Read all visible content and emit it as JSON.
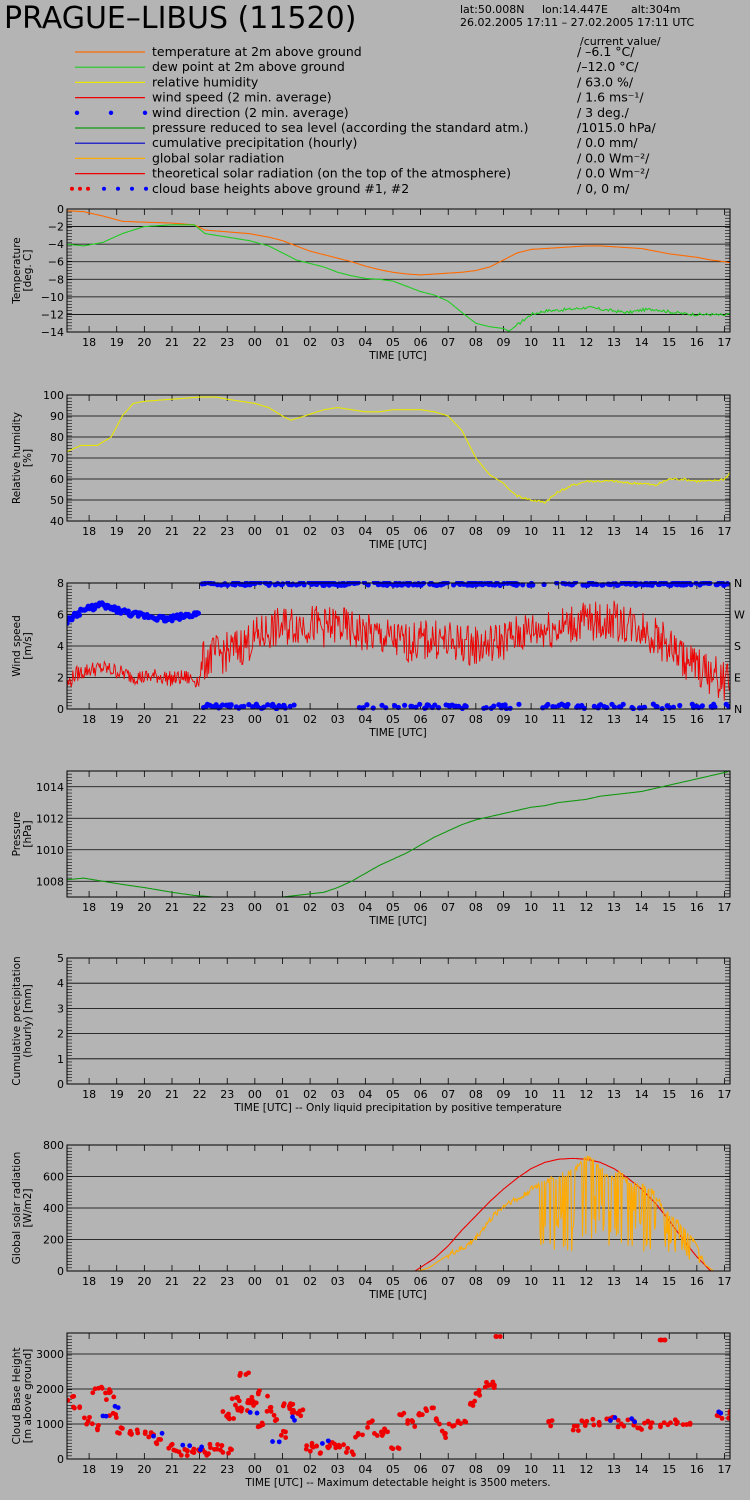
{
  "header": {
    "station": "PRAGUE–LIBUS (11520)",
    "lat": "lat:50.008N",
    "lon": "lon:14.447E",
    "alt": "alt:304m",
    "period": "26.02.2005 17:11 – 27.02.2005 17:11 UTC",
    "current_label": "/current value/"
  },
  "legend": [
    {
      "key": "temperature",
      "label": "temperature at 2m above ground",
      "value": "/ –6.1 °C/",
      "color": "#ff6a00",
      "style": "line"
    },
    {
      "key": "dewpoint",
      "label": "dew point at 2m above ground",
      "value": "/–12.0 °C/",
      "color": "#22cc22",
      "style": "line"
    },
    {
      "key": "humidity",
      "label": "relative humidity",
      "value": "/ 63.0 %/",
      "color": "#e6e600",
      "style": "line"
    },
    {
      "key": "windspeed",
      "label": "wind speed (2 min. average)",
      "value": "/ 1.6 ms⁻¹/",
      "color": "#ee0000",
      "style": "line"
    },
    {
      "key": "winddir",
      "label": "wind direction (2 min. average)",
      "value": "/ 3 deg./",
      "color": "#0000ff",
      "style": "dots"
    },
    {
      "key": "pressure",
      "label": "pressure reduced to sea level (according the standard atm.)",
      "value": "/1015.0 hPa/",
      "color": "#119911",
      "style": "line"
    },
    {
      "key": "precip",
      "label": "cumulative precipitation (hourly)",
      "value": "/ 0.0 mm/",
      "color": "#0000cc",
      "style": "line"
    },
    {
      "key": "solar",
      "label": "global solar radiation",
      "value": "/ 0.0 Wm⁻²/",
      "color": "#ffaa00",
      "style": "line"
    },
    {
      "key": "theory",
      "label": "theoretical solar radiation (on the top of the atmosphere)",
      "value": "/ 0.0 Wm⁻²/",
      "color": "#ee0000",
      "style": "line"
    },
    {
      "key": "cloud",
      "label": "cloud base heights above ground #1, #2",
      "value": "/ 0, 0 m/",
      "color": "#ee0000",
      "style": "dots2"
    }
  ],
  "time_ticks": [
    "18",
    "19",
    "20",
    "21",
    "22",
    "23",
    "00",
    "01",
    "02",
    "03",
    "04",
    "05",
    "06",
    "07",
    "08",
    "09",
    "10",
    "11",
    "12",
    "13",
    "14",
    "15",
    "16",
    "17"
  ],
  "chart_data": [
    {
      "type": "line",
      "ylabel": "Temperature\n[deg. C]",
      "xlabel": "TIME [UTC]",
      "ylim": [
        -14,
        0
      ],
      "yticks": [
        0,
        -2,
        -4,
        -6,
        -8,
        -10,
        -12,
        -14
      ],
      "series": [
        {
          "name": "temperature",
          "color": "#ff6a00",
          "x": [
            17.2,
            17.8,
            18.5,
            19.2,
            20,
            21,
            21.8,
            22.2,
            23,
            23.8,
            24.5,
            25,
            25.5,
            26,
            26.5,
            27,
            27.5,
            28,
            28.5,
            29,
            29.5,
            30,
            30.5,
            31,
            31.5,
            32,
            32.5,
            33,
            33.5,
            34,
            34.5,
            35,
            35.5,
            36,
            36.5,
            37,
            37.5,
            38,
            38.5,
            39,
            39.5,
            40,
            40.5,
            41,
            41.2
          ],
          "y": [
            -0.2,
            -0.3,
            -0.8,
            -1.4,
            -1.5,
            -1.6,
            -1.8,
            -2.4,
            -2.6,
            -2.8,
            -3.2,
            -3.6,
            -4.2,
            -4.8,
            -5.2,
            -5.6,
            -6.0,
            -6.5,
            -6.9,
            -7.2,
            -7.4,
            -7.5,
            -7.4,
            -7.3,
            -7.2,
            -7.0,
            -6.6,
            -5.8,
            -5.0,
            -4.6,
            -4.5,
            -4.4,
            -4.3,
            -4.2,
            -4.2,
            -4.3,
            -4.4,
            -4.5,
            -4.8,
            -5.1,
            -5.3,
            -5.5,
            -5.8,
            -6.0,
            -6.1
          ]
        },
        {
          "name": "dew point",
          "color": "#22cc22",
          "x": [
            17.2,
            17.8,
            18.5,
            19.2,
            20,
            21,
            21.8,
            22.2,
            23,
            23.8,
            24.5,
            25,
            25.5,
            26,
            26.5,
            27,
            27.5,
            28,
            28.5,
            29,
            29.5,
            30,
            30.5,
            31,
            31.5,
            32,
            32.5,
            33,
            33.2,
            33.5,
            34,
            34.5,
            35,
            35.5,
            36,
            36.5,
            37,
            37.5,
            38,
            38.5,
            39,
            39.5,
            40,
            40.5,
            41,
            41.2
          ],
          "y": [
            -4.0,
            -4.2,
            -3.8,
            -2.8,
            -2.0,
            -1.8,
            -1.8,
            -2.8,
            -3.2,
            -3.6,
            -4.2,
            -5.0,
            -5.8,
            -6.2,
            -6.6,
            -7.2,
            -7.6,
            -7.9,
            -8.0,
            -8.2,
            -8.8,
            -9.4,
            -9.8,
            -10.5,
            -11.8,
            -13.0,
            -13.4,
            -13.6,
            -13.9,
            -13.2,
            -12.0,
            -11.6,
            -11.5,
            -11.4,
            -11.2,
            -11.4,
            -11.6,
            -11.8,
            -11.5,
            -11.4,
            -11.7,
            -11.9,
            -12.0,
            -12.0,
            -12.1,
            -12.0
          ]
        }
      ]
    },
    {
      "type": "line",
      "ylabel": "Relative humidity\n[%]",
      "xlabel": "TIME [UTC]",
      "ylim": [
        40,
        100
      ],
      "yticks": [
        100,
        90,
        80,
        70,
        60,
        50,
        40
      ],
      "series": [
        {
          "name": "relative humidity",
          "color": "#e6e600",
          "x": [
            17.2,
            17.7,
            18.3,
            18.8,
            19.2,
            19.6,
            20,
            21,
            22,
            22.6,
            23,
            24,
            24.5,
            25,
            25.3,
            25.8,
            26.5,
            27,
            27.5,
            28,
            28.5,
            29,
            29.5,
            30,
            30.5,
            31,
            31.5,
            32,
            32.5,
            33,
            33.2,
            33.5,
            34,
            34.5,
            35,
            35.5,
            36,
            36.5,
            37,
            37.5,
            38,
            38.5,
            39,
            39.5,
            40,
            40.5,
            41,
            41.2
          ],
          "y": [
            73,
            76,
            76,
            80,
            90,
            96,
            97,
            98,
            99,
            99,
            98,
            96,
            94,
            90,
            88,
            90,
            93,
            94,
            93,
            92,
            92,
            93,
            93,
            93,
            92,
            90,
            83,
            70,
            62,
            58,
            55,
            52,
            50,
            49,
            54,
            57,
            59,
            59,
            59,
            58,
            58,
            57,
            60,
            60,
            59,
            59,
            60,
            63
          ]
        }
      ]
    },
    {
      "type": "line",
      "ylabel": "Wind speed\n[m/s]",
      "xlabel": "TIME [UTC]",
      "ylim": [
        0,
        8
      ],
      "yticks": [
        8,
        6,
        4,
        2,
        0
      ],
      "right_labels": [
        "N",
        "W",
        "S",
        "E",
        "N"
      ],
      "series": [
        {
          "name": "wind speed",
          "color": "#ee0000",
          "noisy": true,
          "x": [
            17.2,
            17.5,
            18,
            18.5,
            19,
            19.5,
            20,
            20.5,
            21,
            21.5,
            22,
            22.1,
            22.5,
            23,
            23.5,
            24,
            24.5,
            25,
            25.5,
            26,
            26.5,
            27,
            27.5,
            28,
            28.5,
            29,
            29.5,
            30,
            30.5,
            31,
            31.5,
            32,
            32.5,
            33,
            33.5,
            34,
            34.5,
            35,
            35.5,
            36,
            36.5,
            37,
            37.5,
            38,
            38.5,
            39,
            39.5,
            40,
            40.5,
            41,
            41.2
          ],
          "y": [
            1.5,
            2.2,
            2.5,
            2.6,
            2.4,
            2.1,
            2.0,
            2.1,
            1.9,
            2.0,
            1.8,
            3.0,
            3.4,
            3.6,
            4.0,
            4.5,
            5.0,
            5.2,
            5.4,
            5.4,
            5.2,
            5.3,
            5.0,
            4.8,
            4.6,
            4.4,
            4.2,
            4.3,
            4.5,
            4.2,
            4.2,
            4.0,
            4.1,
            4.4,
            4.7,
            5.0,
            5.1,
            5.2,
            5.4,
            5.6,
            5.5,
            5.6,
            5.4,
            5.2,
            4.6,
            4.0,
            3.2,
            2.7,
            2.2,
            1.8,
            1.6
          ]
        }
      ],
      "scatter": [
        {
          "name": "wind direction",
          "color": "#0000ff",
          "segments": [
            {
              "x0": 17.2,
              "x1": 22.0,
              "y": [
                5.6,
                6.3,
                6.6,
                6.3,
                6.0,
                5.9,
                5.7,
                5.9,
                6.1
              ]
            },
            {
              "x0": 22.1,
              "x1": 41.2,
              "y": [
                7.95
              ],
              "alt_y": [
                0.1
              ]
            }
          ]
        }
      ]
    },
    {
      "type": "line",
      "ylabel": "Pressure\n[hPa]",
      "xlabel": "TIME [UTC]",
      "ylim": [
        1007,
        1015
      ],
      "yticks": [
        1014,
        1012,
        1010,
        1008
      ],
      "series": [
        {
          "name": "pressure",
          "color": "#119911",
          "x": [
            17.2,
            17.8,
            18.5,
            19.2,
            20,
            21,
            21.8,
            22.5,
            23.5,
            24.5,
            25,
            25.5,
            26,
            26.5,
            27,
            27.5,
            28,
            28.5,
            29,
            29.5,
            30,
            30.5,
            31,
            31.5,
            32,
            32.5,
            33,
            33.5,
            34,
            34.5,
            35,
            35.5,
            36,
            36.5,
            37,
            37.5,
            38,
            38.5,
            39,
            39.5,
            40,
            40.5,
            41,
            41.2
          ],
          "y": [
            1008.1,
            1008.2,
            1008.0,
            1007.8,
            1007.6,
            1007.3,
            1007.1,
            1007.0,
            1007.0,
            1007.0,
            1007.0,
            1007.1,
            1007.2,
            1007.3,
            1007.6,
            1008.0,
            1008.5,
            1009.0,
            1009.4,
            1009.8,
            1010.3,
            1010.8,
            1011.2,
            1011.6,
            1011.9,
            1012.1,
            1012.3,
            1012.5,
            1012.7,
            1012.8,
            1013.0,
            1013.1,
            1013.2,
            1013.4,
            1013.5,
            1013.6,
            1013.7,
            1013.9,
            1014.1,
            1014.3,
            1014.5,
            1014.7,
            1014.9,
            1015.0
          ]
        }
      ]
    },
    {
      "type": "line",
      "ylabel": "Cumulative precipitation\n(hourly) [mm]",
      "xlabel": "TIME [UTC] -- Only liquid precipitation by positive temperature",
      "ylim": [
        0,
        5
      ],
      "yticks": [
        5,
        4,
        3,
        2,
        1,
        0
      ],
      "series": [
        {
          "name": "cumulative precipitation",
          "color": "#0000cc",
          "x": [
            17.2,
            41.2
          ],
          "y": [
            0,
            0
          ]
        }
      ]
    },
    {
      "type": "line",
      "ylabel": "Global solar radiation\n[W/m2]",
      "xlabel": "TIME [UTC]",
      "ylim": [
        0,
        800
      ],
      "yticks": [
        800,
        600,
        400,
        200,
        0
      ],
      "series": [
        {
          "name": "theoretical solar radiation",
          "color": "#ee0000",
          "x": [
            17.2,
            29.8,
            30.5,
            31,
            31.5,
            32,
            32.5,
            33,
            33.5,
            34,
            34.5,
            35,
            35.5,
            36,
            36.5,
            37,
            37.5,
            38,
            38.5,
            39,
            39.5,
            40,
            40.5,
            41.2
          ],
          "y": [
            0,
            0,
            80,
            160,
            260,
            350,
            440,
            520,
            590,
            650,
            690,
            710,
            715,
            710,
            690,
            650,
            590,
            520,
            430,
            320,
            200,
            90,
            0,
            0
          ]
        },
        {
          "name": "global solar radiation",
          "color": "#ffaa00",
          "x": [
            17.2,
            29.9,
            30.3,
            30.8,
            31.2,
            31.6,
            32,
            32.4,
            32.8,
            33.2,
            33.6,
            34,
            34.4,
            34.8,
            35.2,
            35.6,
            36,
            36.4,
            36.8,
            37.2,
            37.6,
            38,
            38.4,
            38.8,
            39.2,
            39.6,
            40,
            40.3,
            40.6,
            41.2
          ],
          "y": [
            0,
            0,
            20,
            80,
            120,
            150,
            210,
            300,
            380,
            440,
            460,
            520,
            560,
            590,
            610,
            640,
            720,
            680,
            580,
            620,
            560,
            540,
            500,
            400,
            320,
            280,
            150,
            40,
            0,
            0
          ]
        }
      ]
    },
    {
      "type": "scatter",
      "ylabel": "Cloud Base Height\n[m above ground]",
      "xlabel": "TIME [UTC] -- Maximum detectable height is 3500 meters.",
      "ylim": [
        0,
        3600
      ],
      "yticks": [
        3000,
        2000,
        1000,
        0
      ],
      "series": [
        {
          "name": "cloud base #1",
          "color": "#ee0000",
          "x": [
            17.3,
            17.6,
            17.9,
            18.2,
            18.6,
            18.9,
            19.2,
            19.5,
            19.9,
            20.3,
            20.6,
            21.0,
            21.3,
            21.6,
            21.9,
            22.2,
            22.5,
            22.8,
            23.0,
            23.2,
            23.4,
            23.6,
            23.8,
            24.0,
            24.3,
            24.6,
            25.0,
            25.3,
            25.6,
            25.9,
            26.2,
            26.5,
            26.8,
            27.1,
            27.4,
            27.8,
            28.2,
            28.5,
            28.8,
            29.1,
            29.4,
            29.7,
            30.0,
            30.3,
            30.6,
            30.9,
            31.2,
            31.5,
            31.8,
            32.1,
            32.5,
            32.9,
            34.8,
            35.6,
            36.0,
            36.4,
            36.8,
            37.2,
            37.6,
            38.0,
            38.4,
            38.8,
            39.2,
            39.6,
            40.9,
            41.1,
            23.0,
            23.3,
            23.6,
            24.2,
            24.7,
            25.1,
            25.5,
            18.3,
            18.8,
            32.5,
            38.8
          ],
          "y": [
            1700,
            1400,
            1100,
            900,
            1950,
            1200,
            800,
            700,
            750,
            650,
            500,
            350,
            200,
            150,
            250,
            200,
            350,
            300,
            250,
            1200,
            1450,
            2400,
            1600,
            1700,
            1900,
            1400,
            700,
            1600,
            1300,
            300,
            350,
            250,
            400,
            300,
            200,
            700,
            1000,
            700,
            800,
            400,
            1200,
            1000,
            1300,
            1400,
            1100,
            700,
            950,
            1100,
            1600,
            1900,
            2000,
            3500,
            1000,
            900,
            1000,
            1050,
            1100,
            1000,
            1050,
            950,
            1000,
            1000,
            1050,
            1000,
            1150,
            1250,
            1300,
            1700,
            1400,
            1000,
            1200,
            1500,
            1300,
            2000,
            1800,
            2100,
            3400
          ]
        },
        {
          "name": "cloud base #2",
          "color": "#0000ff",
          "x": [
            18.5,
            19.0,
            20.5,
            21.5,
            22.0,
            24.0,
            24.8,
            25.4,
            26.6,
            37.0,
            37.8,
            40.8
          ],
          "y": [
            1300,
            1550,
            750,
            400,
            300,
            1300,
            550,
            1100,
            500,
            1200,
            1100,
            1250
          ]
        }
      ]
    }
  ]
}
